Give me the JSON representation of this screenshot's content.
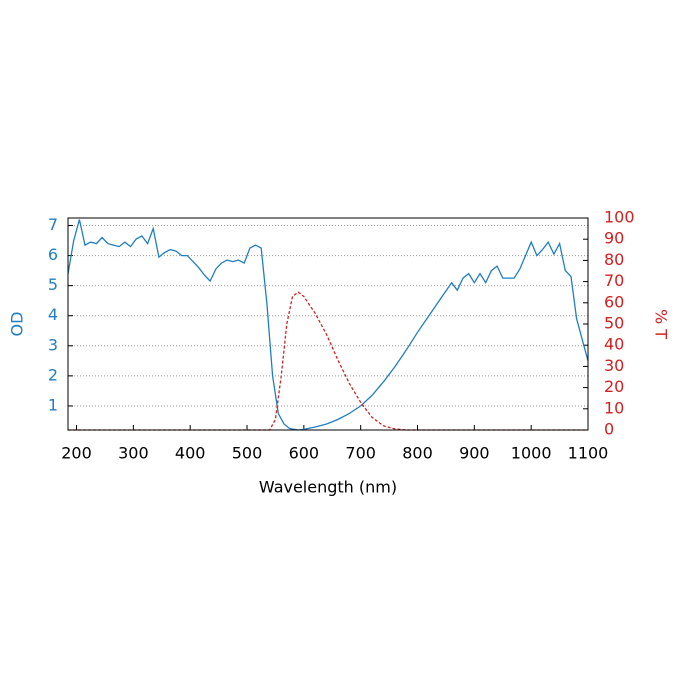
{
  "chart_data": {
    "type": "line",
    "xlabel": "Wavelength (nm)",
    "ylabel": "OD",
    "y2label": "% T",
    "xlim": [
      185,
      1100
    ],
    "xticks": [
      200,
      300,
      400,
      500,
      600,
      700,
      800,
      900,
      1000,
      1100
    ],
    "ylim": [
      0.2,
      7.25
    ],
    "yticks": [
      1,
      2,
      3,
      4,
      5,
      6,
      7
    ],
    "y2lim": [
      0,
      100
    ],
    "y2ticks": [
      0,
      10,
      20,
      30,
      40,
      50,
      60,
      70,
      80,
      90,
      100
    ],
    "grid": true,
    "series": [
      {
        "name": "OD",
        "color": "#1f7fc4",
        "axis": "y",
        "style": "solid",
        "x": [
          185,
          195,
          205,
          215,
          225,
          235,
          245,
          255,
          265,
          275,
          285,
          295,
          305,
          315,
          325,
          335,
          345,
          355,
          365,
          375,
          385,
          395,
          405,
          415,
          425,
          435,
          445,
          455,
          465,
          475,
          485,
          495,
          505,
          515,
          525,
          535,
          545,
          555,
          565,
          575,
          590,
          600,
          620,
          640,
          660,
          680,
          700,
          720,
          740,
          760,
          780,
          800,
          820,
          840,
          860,
          870,
          880,
          890,
          900,
          910,
          920,
          930,
          940,
          950,
          960,
          970,
          980,
          990,
          1000,
          1010,
          1020,
          1030,
          1040,
          1050,
          1060,
          1070,
          1080,
          1090,
          1100
        ],
        "values": [
          5.4,
          6.5,
          7.2,
          6.35,
          6.45,
          6.4,
          6.6,
          6.4,
          6.35,
          6.3,
          6.45,
          6.3,
          6.55,
          6.65,
          6.4,
          6.9,
          5.95,
          6.1,
          6.2,
          6.15,
          6.0,
          6.0,
          5.8,
          5.6,
          5.35,
          5.15,
          5.55,
          5.75,
          5.85,
          5.8,
          5.85,
          5.75,
          6.25,
          6.35,
          6.25,
          4.4,
          2.0,
          0.75,
          0.4,
          0.25,
          0.2,
          0.22,
          0.3,
          0.4,
          0.55,
          0.75,
          1.0,
          1.35,
          1.8,
          2.3,
          2.85,
          3.45,
          4.0,
          4.55,
          5.1,
          4.85,
          5.25,
          5.4,
          5.1,
          5.4,
          5.1,
          5.5,
          5.65,
          5.25,
          5.25,
          5.25,
          5.55,
          6.0,
          6.45,
          6.0,
          6.2,
          6.45,
          6.05,
          6.4,
          5.5,
          5.3,
          3.9,
          3.2,
          2.5
        ]
      },
      {
        "name": "% T",
        "color": "#d42020",
        "axis": "y2",
        "style": "dashed",
        "x": [
          185,
          540,
          550,
          560,
          570,
          580,
          590,
          600,
          620,
          640,
          660,
          680,
          700,
          720,
          740,
          760,
          780,
          1100
        ],
        "values": [
          0,
          0,
          5,
          25,
          50,
          63,
          65,
          63,
          55,
          45,
          33,
          22,
          13,
          6,
          2,
          0.5,
          0,
          0
        ]
      }
    ]
  }
}
